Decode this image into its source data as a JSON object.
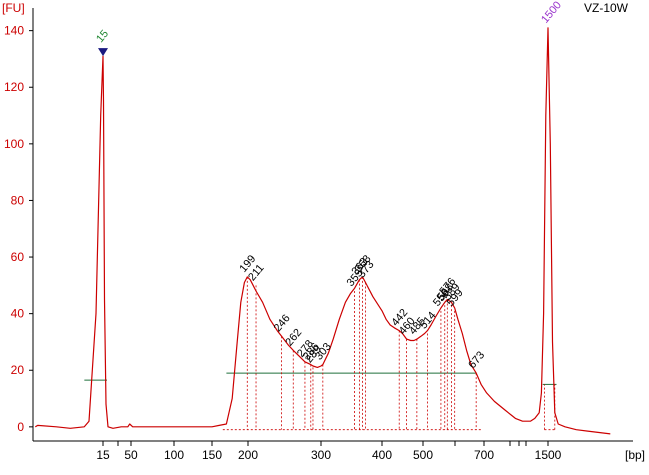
{
  "chart_data": {
    "type": "line",
    "title": "VZ-10W",
    "ylabel": "[FU]",
    "xlabel": "[bp]",
    "ylim": [
      -5,
      150
    ],
    "y_ticks": [
      0,
      20,
      40,
      60,
      80,
      100,
      120,
      140
    ],
    "x_ticks": [
      "15",
      "50",
      "100",
      "150",
      "200",
      "300",
      "400",
      "500",
      "700",
      "1500"
    ],
    "grid": false,
    "colors": {
      "trace": "#cc0000",
      "marker_lower": "#228833",
      "marker_upper": "#9933cc",
      "baseline": "#1f6f3a",
      "axis": "#000000"
    },
    "markers": [
      {
        "label": "15",
        "size_bp": 15,
        "height_fu": 131,
        "symbol": "triangle-down"
      },
      {
        "label": "1500",
        "size_bp": 1500,
        "height_fu": 141
      }
    ],
    "peaks": [
      {
        "label": "199",
        "size_bp": 199,
        "height_fu": 53
      },
      {
        "label": "211",
        "size_bp": 211,
        "height_fu": 50
      },
      {
        "label": "246",
        "size_bp": 246,
        "height_fu": 32
      },
      {
        "label": "262",
        "size_bp": 262,
        "height_fu": 27
      },
      {
        "label": "278",
        "size_bp": 278,
        "height_fu": 23
      },
      {
        "label": "286",
        "size_bp": 286,
        "height_fu": 22
      },
      {
        "label": "289",
        "size_bp": 289,
        "height_fu": 21
      },
      {
        "label": "303",
        "size_bp": 303,
        "height_fu": 22
      },
      {
        "label": "355",
        "size_bp": 355,
        "height_fu": 48
      },
      {
        "label": "363",
        "size_bp": 363,
        "height_fu": 52
      },
      {
        "label": "368",
        "size_bp": 368,
        "height_fu": 53
      },
      {
        "label": "373",
        "size_bp": 373,
        "height_fu": 51
      },
      {
        "label": "442",
        "size_bp": 442,
        "height_fu": 34
      },
      {
        "label": "460",
        "size_bp": 460,
        "height_fu": 31
      },
      {
        "label": "485",
        "size_bp": 485,
        "height_fu": 31
      },
      {
        "label": "514",
        "size_bp": 514,
        "height_fu": 33
      },
      {
        "label": "556",
        "size_bp": 556,
        "height_fu": 41
      },
      {
        "label": "568",
        "size_bp": 568,
        "height_fu": 43
      },
      {
        "label": "576",
        "size_bp": 576,
        "height_fu": 45
      },
      {
        "label": "589",
        "size_bp": 589,
        "height_fu": 43
      },
      {
        "label": "599",
        "size_bp": 599,
        "height_fu": 41
      },
      {
        "label": "673",
        "size_bp": 673,
        "height_fu": 19
      }
    ],
    "region_baseline_fu": 19,
    "series": [
      {
        "trace": [
          [
            0.5,
            0
          ],
          [
            1,
            0.5
          ],
          [
            5,
            0
          ],
          [
            8,
            -0.5
          ],
          [
            11,
            0
          ],
          [
            12,
            2
          ],
          [
            13.5,
            40
          ],
          [
            14.5,
            110
          ],
          [
            15,
            131
          ],
          [
            15.5,
            115
          ],
          [
            16.5,
            45
          ],
          [
            18,
            8
          ],
          [
            20,
            0
          ],
          [
            25,
            -0.5
          ],
          [
            35,
            0
          ],
          [
            45,
            0
          ],
          [
            48,
            1
          ],
          [
            52,
            0
          ],
          [
            60,
            0
          ],
          [
            80,
            0
          ],
          [
            100,
            0
          ],
          [
            120,
            0
          ],
          [
            140,
            0
          ],
          [
            150,
            0
          ],
          [
            160,
            0.5
          ],
          [
            170,
            1
          ],
          [
            178,
            10
          ],
          [
            185,
            30
          ],
          [
            190,
            44
          ],
          [
            195,
            51
          ],
          [
            199,
            53
          ],
          [
            203,
            52
          ],
          [
            207,
            50
          ],
          [
            211,
            48
          ],
          [
            220,
            44
          ],
          [
            230,
            38
          ],
          [
            240,
            34
          ],
          [
            246,
            32
          ],
          [
            255,
            29
          ],
          [
            262,
            27
          ],
          [
            270,
            25
          ],
          [
            278,
            23
          ],
          [
            286,
            22
          ],
          [
            289,
            21.5
          ],
          [
            295,
            21
          ],
          [
            300,
            21.5
          ],
          [
            303,
            22
          ],
          [
            312,
            26
          ],
          [
            320,
            31
          ],
          [
            330,
            38
          ],
          [
            340,
            44
          ],
          [
            348,
            47
          ],
          [
            355,
            49
          ],
          [
            363,
            52
          ],
          [
            368,
            53
          ],
          [
            373,
            51
          ],
          [
            385,
            46
          ],
          [
            400,
            41
          ],
          [
            410,
            38
          ],
          [
            420,
            36
          ],
          [
            430,
            35
          ],
          [
            442,
            34
          ],
          [
            450,
            33
          ],
          [
            460,
            31
          ],
          [
            470,
            30.5
          ],
          [
            478,
            30.5
          ],
          [
            485,
            31
          ],
          [
            495,
            32
          ],
          [
            505,
            33
          ],
          [
            514,
            34
          ],
          [
            525,
            36
          ],
          [
            540,
            39
          ],
          [
            556,
            42
          ],
          [
            568,
            44
          ],
          [
            576,
            45
          ],
          [
            589,
            44
          ],
          [
            599,
            42
          ],
          [
            610,
            38
          ],
          [
            625,
            33
          ],
          [
            640,
            27
          ],
          [
            655,
            22
          ],
          [
            673,
            19
          ],
          [
            690,
            15
          ],
          [
            710,
            12
          ],
          [
            740,
            9
          ],
          [
            780,
            6
          ],
          [
            820,
            4
          ],
          [
            860,
            3
          ],
          [
            900,
            2.5
          ],
          [
            950,
            2
          ],
          [
            1000,
            2
          ],
          [
            1050,
            2
          ],
          [
            1100,
            2
          ],
          [
            1200,
            3
          ],
          [
            1300,
            5
          ],
          [
            1350,
            12
          ],
          [
            1400,
            40
          ],
          [
            1450,
            110
          ],
          [
            1500,
            141
          ],
          [
            1540,
            100
          ],
          [
            1580,
            30
          ],
          [
            1620,
            5
          ],
          [
            1680,
            1
          ],
          [
            1800,
            0
          ],
          [
            2000,
            -1
          ],
          [
            2200,
            -1.5
          ],
          [
            2400,
            -2
          ],
          [
            2600,
            -2.5
          ]
        ]
      }
    ]
  }
}
